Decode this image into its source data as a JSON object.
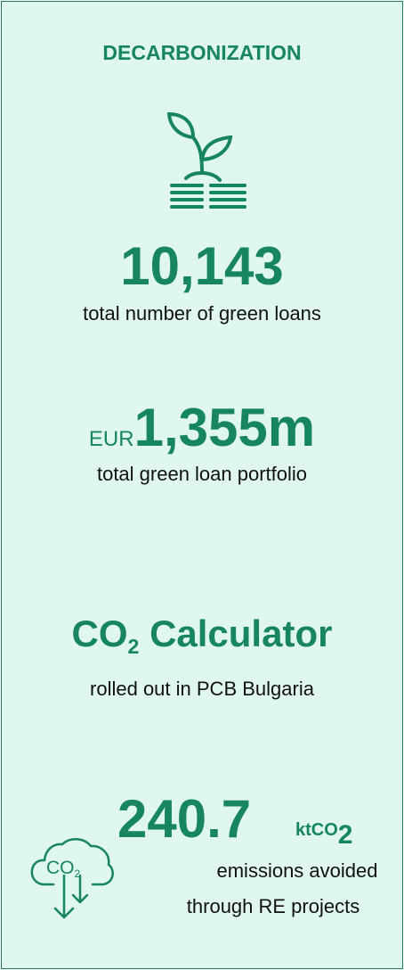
{
  "title": "DECARBONIZATION",
  "stats": [
    {
      "value": "10,143",
      "label": "total number of green loans"
    },
    {
      "prefix": "EUR",
      "value": "1,355m",
      "label": "total green loan portfolio"
    },
    {
      "value_main": "CO",
      "value_sub": "2",
      "value_rest": "Calculator",
      "label": "rolled out in PCB Bulgaria"
    },
    {
      "value": "240.7",
      "unit_main": "ktCO",
      "unit_sub": "2",
      "label_lines": [
        "emissions avoided",
        "through RE projects"
      ],
      "icon_main": "CO",
      "icon_sub": "2"
    }
  ]
}
